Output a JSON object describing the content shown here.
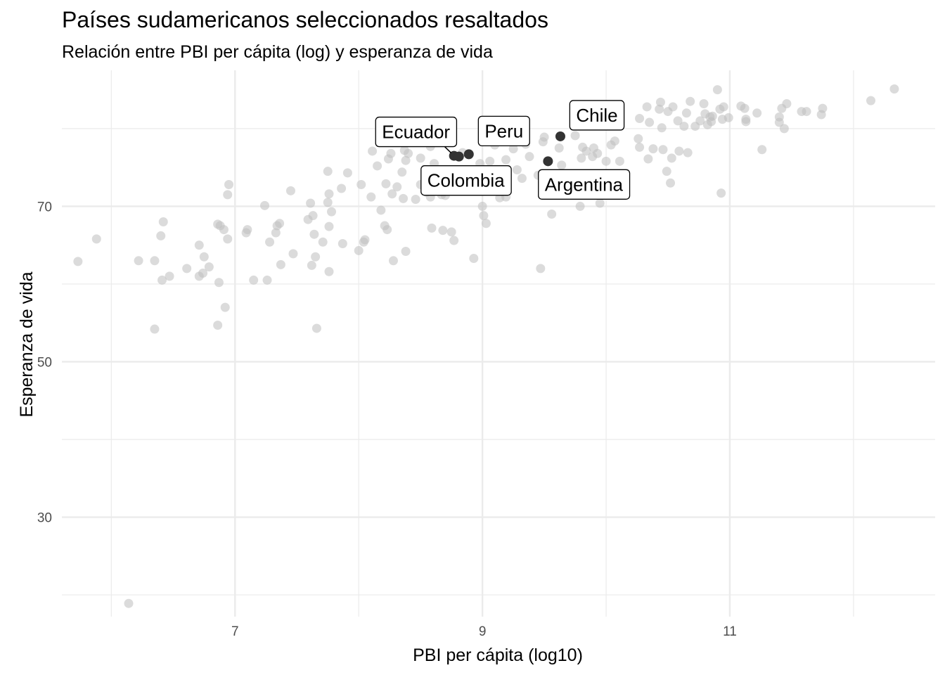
{
  "chart_data": {
    "type": "scatter",
    "title": "Países sudamericanos seleccionados resaltados",
    "subtitle": "Relación entre PBI per cápita (log) y esperanza de vida",
    "xlabel": "PBI per cápita (log10)",
    "ylabel": "Esperanza de vida",
    "xlim": [
      5.6,
      12.66
    ],
    "ylim": [
      17.2,
      87.5
    ],
    "x_ticks": [
      7,
      9,
      11
    ],
    "x_tick_labels": [
      "7",
      "9",
      "11"
    ],
    "y_ticks": [
      30,
      50,
      70
    ],
    "y_tick_labels": [
      "30",
      "50",
      "70"
    ],
    "x_minor": [
      6,
      8,
      10,
      12
    ],
    "y_minor": [
      20,
      40,
      60,
      80
    ],
    "grid": true,
    "colors": {
      "background_points": "#bdbdbd",
      "highlight_points": "#333333",
      "grid": "#ebebeb"
    },
    "highlighted": [
      {
        "label": "Chile",
        "x": 9.63,
        "y": 79.0
      },
      {
        "label": "Peru",
        "x": 8.89,
        "y": 76.7
      },
      {
        "label": "Ecuador",
        "x": 8.77,
        "y": 76.5
      },
      {
        "label": "Colombia",
        "x": 8.81,
        "y": 76.4
      },
      {
        "label": "Argentina",
        "x": 9.53,
        "y": 75.8
      }
    ],
    "points": [
      [
        5.73,
        62.9
      ],
      [
        5.88,
        65.8
      ],
      [
        6.14,
        18.9
      ],
      [
        6.22,
        63.0
      ],
      [
        6.35,
        54.2
      ],
      [
        6.35,
        63.0
      ],
      [
        6.4,
        66.2
      ],
      [
        6.41,
        60.5
      ],
      [
        6.42,
        68.0
      ],
      [
        6.47,
        61.0
      ],
      [
        6.61,
        62.0
      ],
      [
        6.71,
        65.0
      ],
      [
        6.71,
        61.0
      ],
      [
        6.74,
        61.4
      ],
      [
        6.75,
        63.5
      ],
      [
        6.79,
        62.2
      ],
      [
        6.86,
        67.7
      ],
      [
        6.87,
        60.2
      ],
      [
        6.86,
        54.7
      ],
      [
        6.88,
        67.5
      ],
      [
        6.91,
        67.0
      ],
      [
        6.92,
        57.0
      ],
      [
        6.94,
        71.5
      ],
      [
        6.94,
        65.8
      ],
      [
        6.95,
        72.8
      ],
      [
        7.09,
        66.6
      ],
      [
        7.1,
        67.0
      ],
      [
        7.15,
        60.5
      ],
      [
        7.24,
        70.1
      ],
      [
        7.26,
        60.5
      ],
      [
        7.28,
        65.4
      ],
      [
        7.33,
        66.6
      ],
      [
        7.34,
        67.5
      ],
      [
        7.36,
        67.8
      ],
      [
        7.37,
        62.5
      ],
      [
        7.45,
        72.0
      ],
      [
        7.47,
        63.9
      ],
      [
        7.59,
        68.3
      ],
      [
        7.61,
        70.4
      ],
      [
        7.62,
        62.4
      ],
      [
        7.63,
        68.8
      ],
      [
        7.64,
        66.4
      ],
      [
        7.65,
        63.5
      ],
      [
        7.66,
        54.3
      ],
      [
        7.71,
        65.4
      ],
      [
        7.75,
        70.5
      ],
      [
        7.75,
        74.5
      ],
      [
        7.76,
        67.4
      ],
      [
        7.76,
        61.6
      ],
      [
        7.76,
        71.6
      ],
      [
        7.78,
        69.3
      ],
      [
        7.86,
        72.3
      ],
      [
        7.87,
        65.2
      ],
      [
        7.91,
        74.3
      ],
      [
        8.0,
        64.3
      ],
      [
        8.02,
        72.8
      ],
      [
        8.04,
        65.4
      ],
      [
        8.05,
        65.7
      ],
      [
        8.1,
        71.2
      ],
      [
        8.11,
        77.1
      ],
      [
        8.15,
        75.2
      ],
      [
        8.18,
        69.5
      ],
      [
        8.21,
        67.5
      ],
      [
        8.22,
        72.9
      ],
      [
        8.23,
        67.0
      ],
      [
        8.24,
        76.1
      ],
      [
        8.26,
        76.8
      ],
      [
        8.27,
        71.6
      ],
      [
        8.28,
        63.0
      ],
      [
        8.31,
        72.5
      ],
      [
        8.35,
        74.4
      ],
      [
        8.36,
        71.0
      ],
      [
        8.37,
        77.2
      ],
      [
        8.38,
        75.9
      ],
      [
        8.38,
        64.2
      ],
      [
        8.4,
        76.8
      ],
      [
        8.46,
        70.9
      ],
      [
        8.5,
        76.2
      ],
      [
        8.5,
        72.8
      ],
      [
        8.55,
        71.8
      ],
      [
        8.58,
        77.7
      ],
      [
        8.58,
        71.2
      ],
      [
        8.59,
        67.2
      ],
      [
        8.61,
        75.5
      ],
      [
        8.65,
        73.4
      ],
      [
        8.67,
        71.5
      ],
      [
        8.68,
        66.9
      ],
      [
        8.7,
        71.4
      ],
      [
        8.75,
        66.7
      ],
      [
        8.77,
        65.6
      ],
      [
        8.84,
        76.9
      ],
      [
        8.93,
        63.3
      ],
      [
        8.98,
        75.5
      ],
      [
        9.0,
        70.0
      ],
      [
        9.01,
        68.8
      ],
      [
        9.03,
        67.8
      ],
      [
        9.06,
        75.8
      ],
      [
        9.1,
        77.9
      ],
      [
        9.14,
        71.1
      ],
      [
        9.19,
        71.2
      ],
      [
        9.19,
        76.0
      ],
      [
        9.25,
        77.4
      ],
      [
        9.28,
        74.7
      ],
      [
        9.32,
        73.6
      ],
      [
        9.35,
        78.0
      ],
      [
        9.38,
        76.4
      ],
      [
        9.45,
        74.0
      ],
      [
        9.47,
        62.0
      ],
      [
        9.49,
        78.3
      ],
      [
        9.5,
        78.9
      ],
      [
        9.56,
        69.0
      ],
      [
        9.62,
        77.5
      ],
      [
        9.64,
        75.3
      ],
      [
        9.68,
        73.0
      ],
      [
        9.75,
        79.1
      ],
      [
        9.79,
        70.0
      ],
      [
        9.8,
        76.2
      ],
      [
        9.81,
        77.6
      ],
      [
        9.84,
        77.1
      ],
      [
        9.89,
        76.4
      ],
      [
        9.9,
        77.5
      ],
      [
        9.93,
        76.8
      ],
      [
        9.94,
        83.0
      ],
      [
        9.95,
        70.4
      ],
      [
        10.0,
        75.8
      ],
      [
        10.04,
        77.9
      ],
      [
        10.07,
        78.4
      ],
      [
        10.11,
        75.8
      ],
      [
        10.26,
        78.7
      ],
      [
        10.27,
        77.6
      ],
      [
        10.27,
        81.3
      ],
      [
        10.33,
        82.8
      ],
      [
        10.34,
        76.1
      ],
      [
        10.35,
        80.8
      ],
      [
        10.38,
        77.4
      ],
      [
        10.43,
        82.5
      ],
      [
        10.44,
        83.4
      ],
      [
        10.45,
        80.1
      ],
      [
        10.46,
        77.3
      ],
      [
        10.49,
        74.5
      ],
      [
        10.5,
        82.2
      ],
      [
        10.52,
        73.0
      ],
      [
        10.53,
        76.2
      ],
      [
        10.54,
        82.8
      ],
      [
        10.58,
        81.0
      ],
      [
        10.59,
        77.1
      ],
      [
        10.63,
        80.3
      ],
      [
        10.65,
        82.0
      ],
      [
        10.66,
        76.9
      ],
      [
        10.68,
        83.5
      ],
      [
        10.72,
        80.3
      ],
      [
        10.76,
        81.0
      ],
      [
        10.79,
        83.2
      ],
      [
        10.8,
        81.9
      ],
      [
        10.82,
        80.5
      ],
      [
        10.84,
        81.5
      ],
      [
        10.85,
        80.9
      ],
      [
        10.86,
        81.6
      ],
      [
        10.9,
        85.0
      ],
      [
        10.92,
        82.5
      ],
      [
        10.93,
        71.7
      ],
      [
        10.94,
        81.2
      ],
      [
        10.95,
        82.8
      ],
      [
        10.99,
        81.4
      ],
      [
        11.09,
        82.9
      ],
      [
        11.12,
        82.6
      ],
      [
        11.13,
        81.2
      ],
      [
        11.13,
        80.9
      ],
      [
        11.22,
        82.0
      ],
      [
        11.26,
        77.3
      ],
      [
        11.4,
        80.8
      ],
      [
        11.4,
        81.5
      ],
      [
        11.42,
        82.6
      ],
      [
        11.44,
        80.0
      ],
      [
        11.46,
        83.2
      ],
      [
        11.58,
        82.2
      ],
      [
        11.62,
        82.2
      ],
      [
        11.74,
        81.8
      ],
      [
        11.75,
        82.6
      ],
      [
        12.14,
        83.6
      ],
      [
        12.33,
        85.1
      ]
    ]
  }
}
